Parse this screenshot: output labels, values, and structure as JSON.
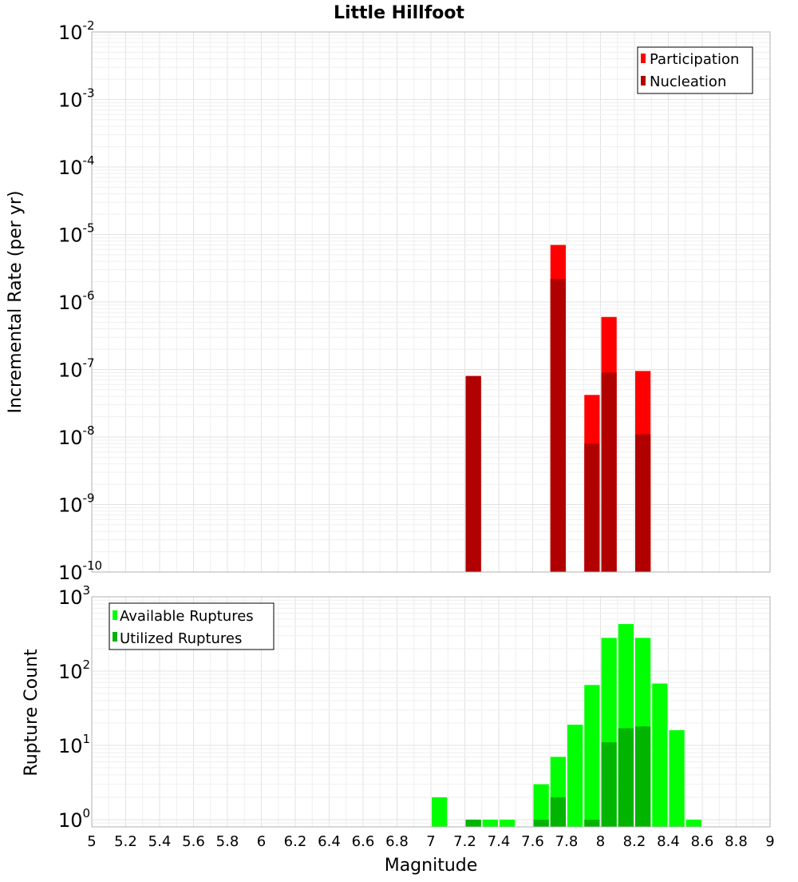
{
  "chart_data": [
    {
      "type": "bar",
      "title": "Little Hillfoot",
      "xlabel": "",
      "ylabel": "Incremental Rate (per yr)",
      "yscale": "log",
      "ylim": [
        1e-10,
        0.01
      ],
      "ytick_exponents": [
        "-10",
        "-9",
        "-8",
        "-7",
        "-6",
        "-5",
        "-4",
        "-3",
        "-2"
      ],
      "xlim": [
        5,
        9
      ],
      "grid": true,
      "legend": {
        "position": "top-right",
        "entries": [
          "Participation",
          "Nucleation"
        ]
      },
      "colors": {
        "Participation": "#ff0000",
        "Nucleation": "#b00000"
      },
      "bar_width": 0.1,
      "series": [
        {
          "name": "Participation",
          "x": [
            7.25,
            7.75,
            7.95,
            8.05,
            8.25
          ],
          "values": [
            8e-08,
            7e-06,
            4.2e-08,
            6e-07,
            9.5e-08
          ]
        },
        {
          "name": "Nucleation",
          "x": [
            7.25,
            7.75,
            7.95,
            8.05,
            8.25
          ],
          "values": [
            8e-08,
            2.2e-06,
            8e-09,
            9e-08,
            1.1e-08
          ]
        }
      ]
    },
    {
      "type": "bar",
      "title": "",
      "xlabel": "Magnitude",
      "ylabel": "Rupture Count",
      "yscale": "log",
      "ylim": [
        0.8,
        1000
      ],
      "ytick_exponents": [
        "0",
        "1",
        "2",
        "3"
      ],
      "xlim": [
        5,
        9
      ],
      "xticks": [
        "5",
        "5.2",
        "5.4",
        "5.6",
        "5.8",
        "6",
        "6.2",
        "6.4",
        "6.6",
        "6.8",
        "7",
        "7.2",
        "7.4",
        "7.6",
        "7.8",
        "8",
        "8.2",
        "8.4",
        "8.6",
        "8.8",
        "9"
      ],
      "grid": true,
      "legend": {
        "position": "top-left",
        "entries": [
          "Available Ruptures",
          "Utilized Ruptures"
        ]
      },
      "colors": {
        "Available Ruptures": "#00ff00",
        "Utilized Ruptures": "#00b400"
      },
      "bar_width": 0.1,
      "series": [
        {
          "name": "Available Ruptures",
          "x": [
            7.05,
            7.25,
            7.35,
            7.45,
            7.65,
            7.75,
            7.85,
            7.95,
            8.05,
            8.15,
            8.25,
            8.35,
            8.45,
            8.55
          ],
          "values": [
            2,
            1,
            1,
            1,
            3,
            7,
            19,
            65,
            280,
            430,
            280,
            68,
            16,
            1
          ]
        },
        {
          "name": "Utilized Ruptures",
          "x": [
            7.25,
            7.65,
            7.75,
            7.95,
            8.05,
            8.15,
            8.25
          ],
          "values": [
            1,
            1,
            2,
            1,
            11,
            17,
            18
          ]
        }
      ]
    }
  ]
}
